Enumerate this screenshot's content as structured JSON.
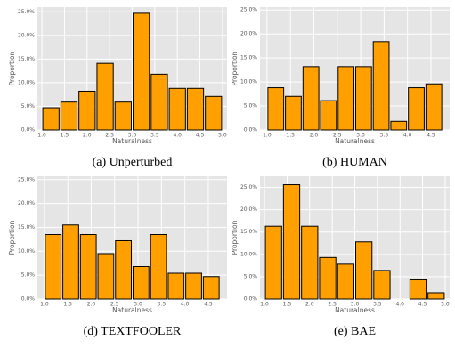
{
  "chart_data": [
    {
      "type": "histogram",
      "caption": "(a) Unperturbed",
      "xlabel": "Naturalness",
      "ylabel": "Proportion",
      "color": "#ff9f00",
      "grid": true,
      "bins": [
        1.0,
        1.4,
        1.8,
        2.2,
        2.6,
        3.0,
        3.4,
        3.8,
        4.2,
        4.6,
        5.0
      ],
      "values": [
        4.7,
        5.9,
        8.2,
        14.1,
        5.9,
        24.7,
        11.8,
        8.8,
        8.8,
        7.1
      ],
      "xlim": [
        0.9,
        5.1
      ],
      "ylim": [
        0,
        26
      ],
      "xticks": [
        {
          "value": 1,
          "label": "1.0"
        },
        {
          "value": 1.5,
          "label": "1.5"
        },
        {
          "value": 2,
          "label": "2.0"
        },
        {
          "value": 2.5,
          "label": "2.5"
        },
        {
          "value": 3,
          "label": "3.0"
        },
        {
          "value": 3.5,
          "label": "3.5"
        },
        {
          "value": 4,
          "label": "4.0"
        },
        {
          "value": 4.5,
          "label": "4.5"
        },
        {
          "value": 5,
          "label": "5.0"
        }
      ],
      "yticks": [
        {
          "value": 0,
          "label": "0.0%"
        },
        {
          "value": 5,
          "label": "5.0%"
        },
        {
          "value": 10,
          "label": "10.0%"
        },
        {
          "value": 15,
          "label": "15.0%"
        },
        {
          "value": 20,
          "label": "20.0%"
        },
        {
          "value": 25,
          "label": "25.0%"
        }
      ]
    },
    {
      "type": "histogram",
      "caption": "(b) HUMAN",
      "xlabel": "Naturalness",
      "ylabel": "Proportion",
      "color": "#ff9f00",
      "grid": true,
      "bins": [
        1.0,
        1.375,
        1.75,
        2.125,
        2.5,
        2.875,
        3.25,
        3.625,
        4.0,
        4.375,
        4.75
      ],
      "values": [
        8.8,
        7.0,
        13.2,
        6.1,
        13.2,
        13.2,
        18.4,
        1.8,
        8.8,
        9.6
      ],
      "xlim": [
        0.85,
        4.9
      ],
      "ylim": [
        0,
        25.6
      ],
      "xticks": [
        {
          "value": 1,
          "label": "1.0"
        },
        {
          "value": 1.5,
          "label": "1.5"
        },
        {
          "value": 2,
          "label": "2.0"
        },
        {
          "value": 2.5,
          "label": "2.5"
        },
        {
          "value": 3,
          "label": "3.0"
        },
        {
          "value": 3.5,
          "label": "3.5"
        },
        {
          "value": 4,
          "label": "4.0"
        },
        {
          "value": 4.5,
          "label": "4.5"
        }
      ],
      "yticks": [
        {
          "value": 0,
          "label": "0.0%"
        },
        {
          "value": 5,
          "label": "5.0%"
        },
        {
          "value": 10,
          "label": "10.0%"
        },
        {
          "value": 15,
          "label": "15.0%"
        },
        {
          "value": 20,
          "label": "20.0%"
        },
        {
          "value": 25,
          "label": "25.0%"
        }
      ]
    },
    {
      "type": "histogram",
      "caption": "(d) TEXTFOOLER",
      "xlabel": "Naturalness",
      "ylabel": "Proportion",
      "color": "#ff9f00",
      "grid": true,
      "bins": [
        1.0,
        1.375,
        1.75,
        2.125,
        2.5,
        2.875,
        3.25,
        3.625,
        4.0,
        4.375,
        4.75
      ],
      "values": [
        13.5,
        15.5,
        13.5,
        9.5,
        12.2,
        6.8,
        13.5,
        5.4,
        5.4,
        4.7
      ],
      "xlim": [
        0.85,
        4.9
      ],
      "ylim": [
        0,
        25.7
      ],
      "xticks": [
        {
          "value": 1,
          "label": "1.0"
        },
        {
          "value": 1.5,
          "label": "1.5"
        },
        {
          "value": 2,
          "label": "2.0"
        },
        {
          "value": 2.5,
          "label": "2.5"
        },
        {
          "value": 3,
          "label": "3.0"
        },
        {
          "value": 3.5,
          "label": "3.5"
        },
        {
          "value": 4,
          "label": "4.0"
        },
        {
          "value": 4.5,
          "label": "4.5"
        }
      ],
      "yticks": [
        {
          "value": 0,
          "label": "0.0%"
        },
        {
          "value": 5,
          "label": "5.0%"
        },
        {
          "value": 10,
          "label": "10.0%"
        },
        {
          "value": 15,
          "label": "15.0%"
        },
        {
          "value": 20,
          "label": "20.0%"
        },
        {
          "value": 25,
          "label": "25.0%"
        }
      ]
    },
    {
      "type": "histogram",
      "caption": "(e) BAE",
      "xlabel": "Naturalness",
      "ylabel": "Proportion",
      "color": "#ff9f00",
      "grid": true,
      "bins": [
        1.0,
        1.4,
        1.8,
        2.2,
        2.6,
        3.0,
        3.4,
        3.8,
        4.2,
        4.6,
        5.0
      ],
      "values": [
        16.3,
        25.6,
        16.3,
        9.3,
        7.8,
        12.8,
        6.4,
        0,
        4.3,
        1.4
      ],
      "xlim": [
        0.9,
        5.1
      ],
      "ylim": [
        0,
        27.5
      ],
      "xticks": [
        {
          "value": 1,
          "label": "1.0"
        },
        {
          "value": 1.5,
          "label": "1.5"
        },
        {
          "value": 2,
          "label": "2.0"
        },
        {
          "value": 2.5,
          "label": "2.5"
        },
        {
          "value": 3,
          "label": "3.0"
        },
        {
          "value": 3.5,
          "label": "3.5"
        },
        {
          "value": 4,
          "label": "4.0"
        },
        {
          "value": 4.5,
          "label": "4.5"
        },
        {
          "value": 5,
          "label": "5.0"
        }
      ],
      "yticks": [
        {
          "value": 0,
          "label": "0.0%"
        },
        {
          "value": 5,
          "label": "5.0%"
        },
        {
          "value": 10,
          "label": "10.0%"
        },
        {
          "value": 15,
          "label": "15.0%"
        },
        {
          "value": 20,
          "label": "20.0%"
        },
        {
          "value": 25,
          "label": "25.0%"
        }
      ]
    }
  ]
}
